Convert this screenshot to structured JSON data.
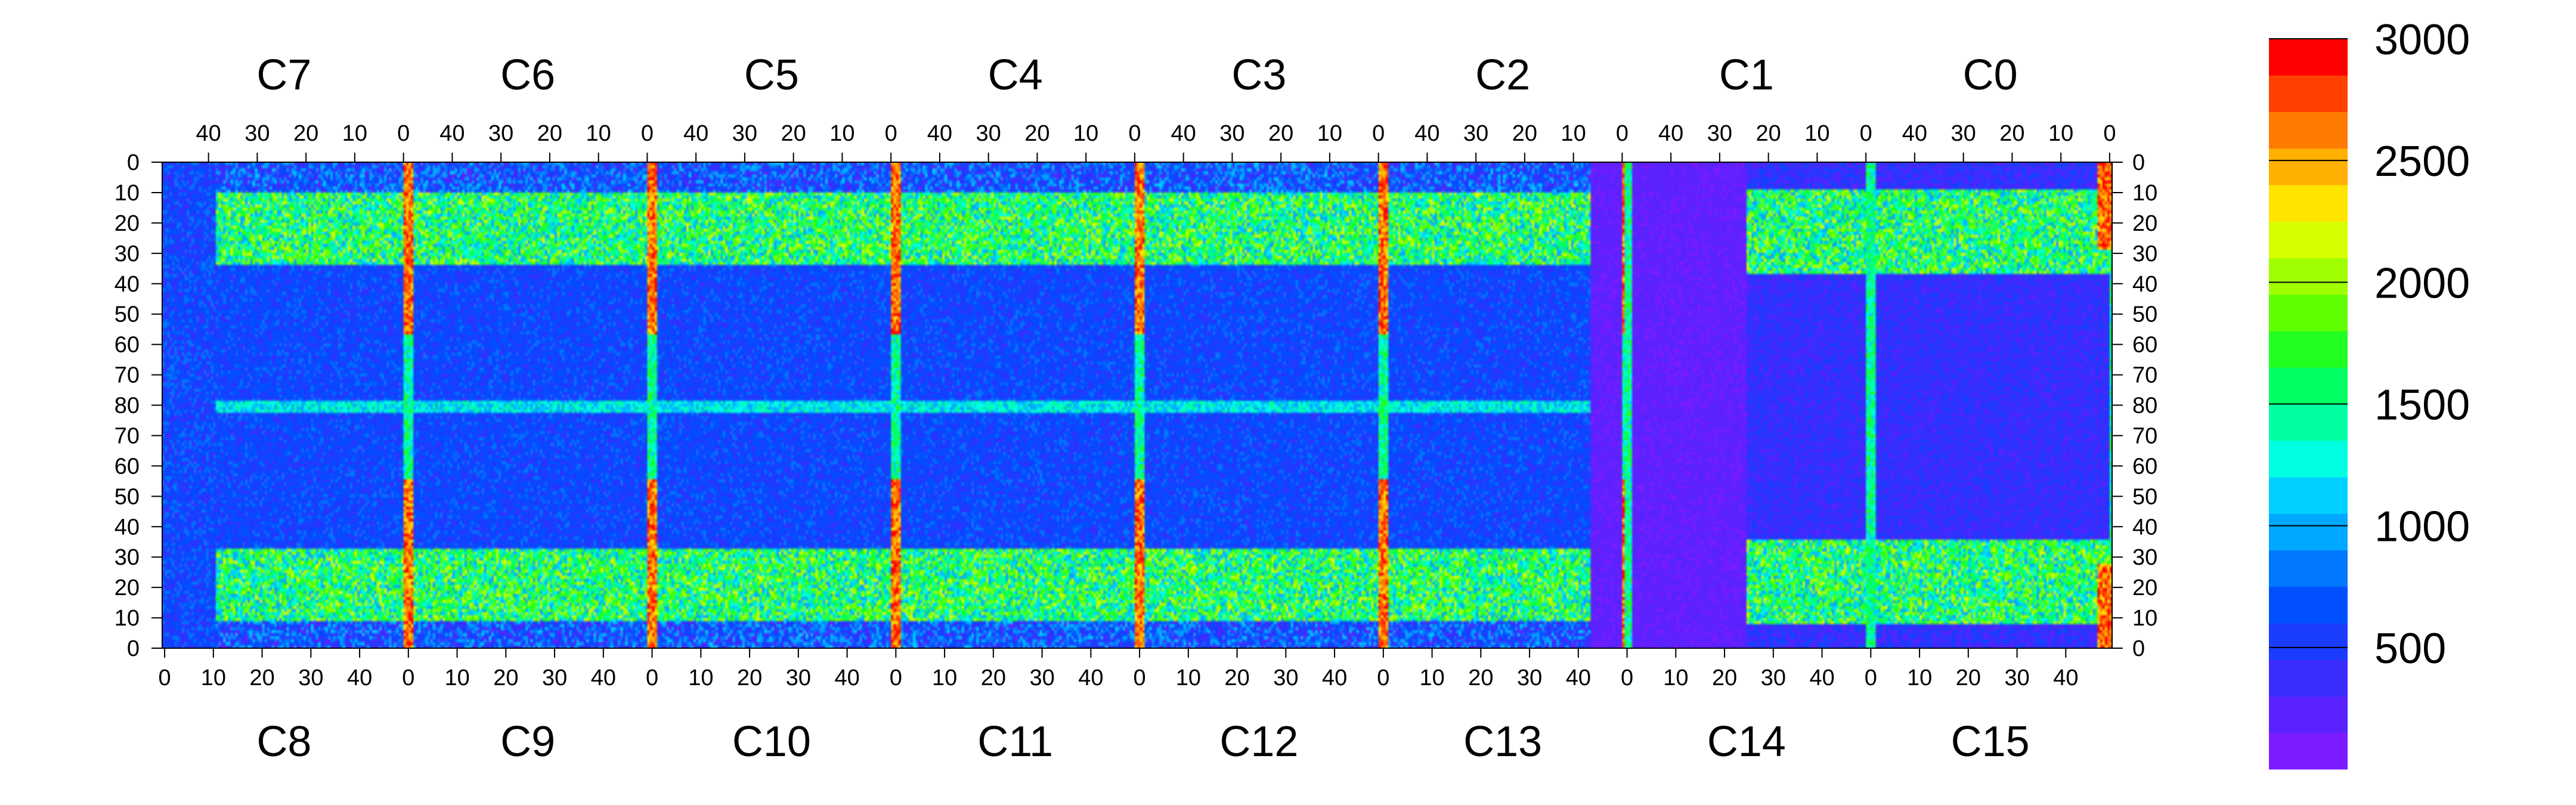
{
  "chart_data": {
    "type": "heatmap",
    "title": "",
    "xlabel": "",
    "ylabel": "",
    "top_chips": [
      "C7",
      "C6",
      "C5",
      "C4",
      "C3",
      "C2",
      "C1",
      "C0"
    ],
    "bottom_chips": [
      "C8",
      "C9",
      "C10",
      "C11",
      "C12",
      "C13",
      "C14",
      "C15"
    ],
    "x_axis_top": {
      "direction": "descending",
      "range_per_chip": [
        49,
        0
      ],
      "tick_values": [
        40,
        30,
        20,
        10,
        0
      ]
    },
    "x_axis_bottom": {
      "direction": "ascending",
      "range_per_chip": [
        0,
        49
      ],
      "tick_values": [
        0,
        10,
        20,
        30,
        40
      ]
    },
    "y_axis": {
      "range_top_half": [
        0,
        80
      ],
      "range_bottom_half": [
        80,
        0
      ],
      "tick_labels": [
        "0",
        "10",
        "20",
        "30",
        "40",
        "50",
        "60",
        "70",
        "80",
        "70",
        "60",
        "50",
        "40",
        "30",
        "20",
        "10",
        "0"
      ]
    },
    "z_axis": {
      "min": 0,
      "max": 3000,
      "tick_values": [
        3000,
        2500,
        2000,
        1500,
        1000,
        500
      ],
      "color_bands": [
        "#7a1cff",
        "#5a22ff",
        "#3a2cff",
        "#1a3cff",
        "#0050ff",
        "#0078ff",
        "#00a8ff",
        "#00d0ff",
        "#00ffe0",
        "#00ffa0",
        "#00ff60",
        "#20ff20",
        "#60ff00",
        "#a0ff00",
        "#d8ff00",
        "#ffe400",
        "#ffb000",
        "#ff7a00",
        "#ff4000",
        "#ff0000"
      ]
    },
    "grid": false,
    "legend": "colorbar-right"
  }
}
